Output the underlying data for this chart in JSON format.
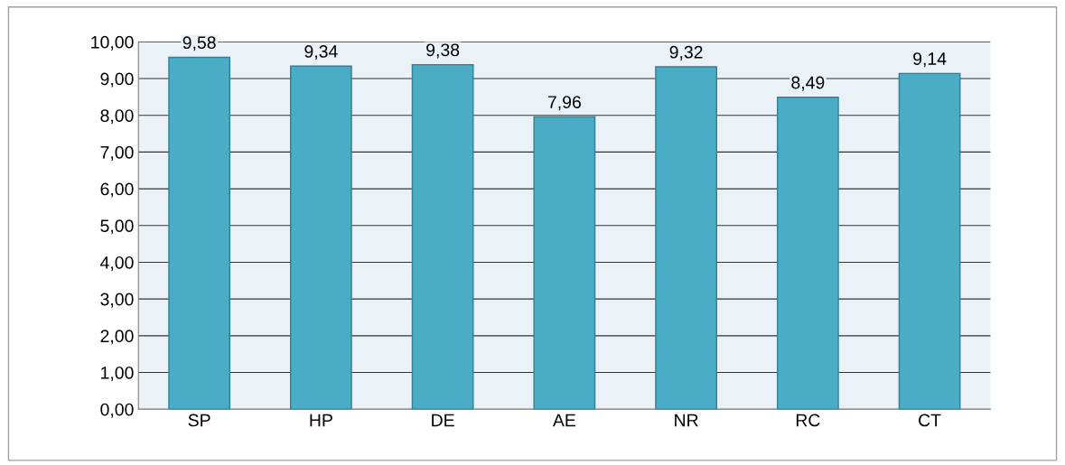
{
  "chart_data": {
    "type": "bar",
    "categories": [
      "SP",
      "HP",
      "DE",
      "AE",
      "NR",
      "RC",
      "CT"
    ],
    "values": [
      9.58,
      9.34,
      9.38,
      7.96,
      9.32,
      8.49,
      9.14
    ],
    "value_labels": [
      "9,58",
      "9,34",
      "9,38",
      "7,96",
      "9,32",
      "8,49",
      "9,14"
    ],
    "color": "#4bacc6",
    "ylim": [
      0,
      10
    ],
    "yticks": [
      {
        "value": 0,
        "label": "0,00"
      },
      {
        "value": 1,
        "label": "1,00"
      },
      {
        "value": 2,
        "label": "2,00"
      },
      {
        "value": 3,
        "label": "3,00"
      },
      {
        "value": 4,
        "label": "4,00"
      },
      {
        "value": 5,
        "label": "5,00"
      },
      {
        "value": 6,
        "label": "6,00"
      },
      {
        "value": 7,
        "label": "7,00"
      },
      {
        "value": 8,
        "label": "8,00"
      },
      {
        "value": 9,
        "label": "9,00"
      },
      {
        "value": 10,
        "label": "10,00"
      }
    ],
    "grid": "y"
  }
}
